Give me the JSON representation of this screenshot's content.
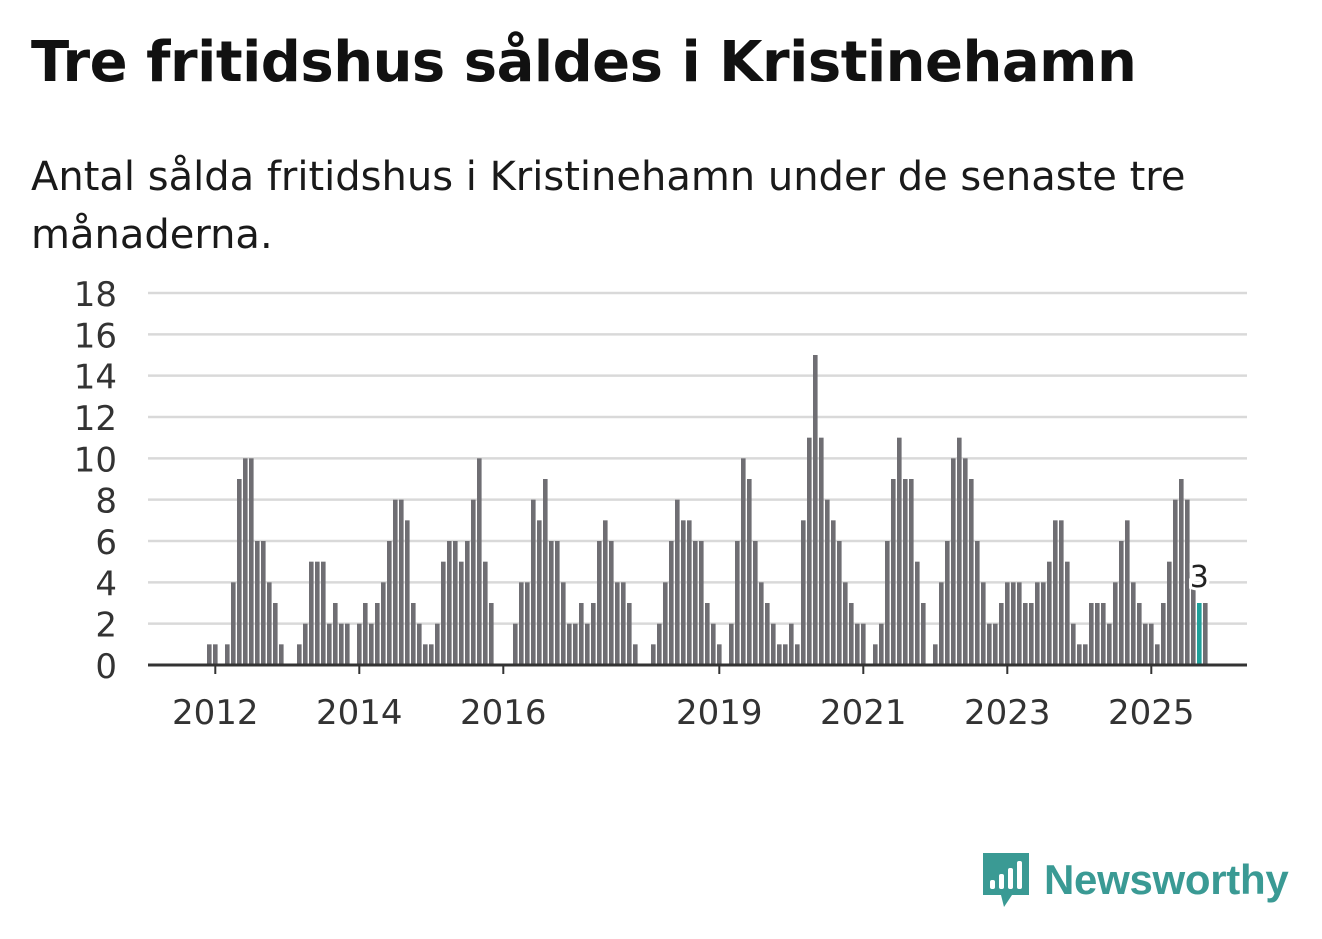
{
  "title": "Tre fritidshus såldes i Kristinehamn",
  "subtitle": "Antal sålda fritidshus i Kristinehamn under de senaste tre månaderna.",
  "brand": {
    "name": "Newsworthy",
    "color": "#3a9a94",
    "icon": "newsworthy-logo-icon"
  },
  "colors": {
    "bar": "#6f6e73",
    "highlight": "#1fa09a",
    "grid": "#d9d9d9",
    "axis": "#333333"
  },
  "chart_data": {
    "type": "bar",
    "title": "Tre fritidshus såldes i Kristinehamn",
    "xlabel": "",
    "ylabel": "",
    "ylim": [
      0,
      18
    ],
    "yticks": [
      0,
      2,
      4,
      6,
      8,
      10,
      12,
      14,
      16,
      18
    ],
    "first_month": "2011-03",
    "xticks": [
      {
        "label": "2012",
        "index": 10
      },
      {
        "label": "2014",
        "index": 34
      },
      {
        "label": "2016",
        "index": 58
      },
      {
        "label": "2019",
        "index": 94
      },
      {
        "label": "2021",
        "index": 118
      },
      {
        "label": "2023",
        "index": 142
      },
      {
        "label": "2025",
        "index": 166
      }
    ],
    "values": [
      0,
      0,
      0,
      0,
      0,
      0,
      0,
      0,
      0,
      1,
      1,
      0,
      1,
      4,
      9,
      10,
      10,
      6,
      6,
      4,
      3,
      1,
      0,
      0,
      1,
      2,
      5,
      5,
      5,
      2,
      3,
      2,
      2,
      0,
      2,
      3,
      2,
      3,
      4,
      6,
      8,
      8,
      7,
      3,
      2,
      1,
      1,
      2,
      5,
      6,
      6,
      5,
      6,
      8,
      10,
      5,
      3,
      0,
      0,
      0,
      2,
      4,
      4,
      8,
      7,
      9,
      6,
      6,
      4,
      2,
      2,
      3,
      2,
      3,
      6,
      7,
      6,
      4,
      4,
      3,
      1,
      0,
      0,
      1,
      2,
      4,
      6,
      8,
      7,
      7,
      6,
      6,
      3,
      2,
      1,
      0,
      2,
      6,
      10,
      9,
      6,
      4,
      3,
      2,
      1,
      1,
      2,
      1,
      7,
      11,
      15,
      11,
      8,
      7,
      6,
      4,
      3,
      2,
      2,
      0,
      1,
      2,
      6,
      9,
      11,
      9,
      9,
      5,
      3,
      0,
      1,
      4,
      6,
      10,
      11,
      10,
      9,
      6,
      4,
      2,
      2,
      3,
      4,
      4,
      4,
      3,
      3,
      4,
      4,
      5,
      7,
      7,
      5,
      2,
      1,
      1,
      3,
      3,
      3,
      2,
      4,
      6,
      7,
      4,
      3,
      2,
      2,
      1,
      3,
      5,
      8,
      9,
      8,
      4,
      3,
      3
    ],
    "highlight_index": 174,
    "highlight_label": "3",
    "series": [
      {
        "name": "Antal sålda fritidshus"
      }
    ]
  }
}
